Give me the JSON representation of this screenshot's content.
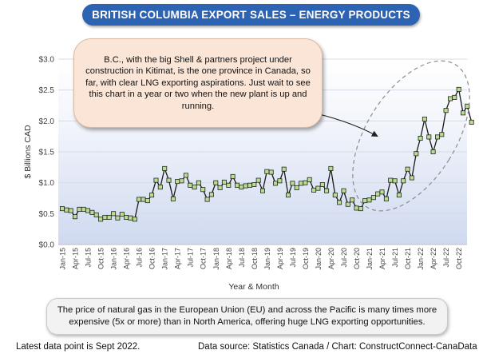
{
  "title": "BRITISH COLUMBIA EXPORT SALES – ENERGY PRODUCTS",
  "annotation": "B.C., with the big Shell & partners project under construction in Kitimat, is the one province in Canada, so far, with clear LNG exporting aspirations. Just wait to see this chart in a year or two when the new plant is up and running.",
  "bottom_note": "The price of natural gas in the European Union (EU) and across the Pacific is many times more expensive (5x or more) than in North America, offering huge LNG exporting opportunities.",
  "footer": {
    "latest": "Latest data point is Sept 2022.",
    "source": "Data source: Statistics Canada / Chart: ConstructConnect-CanaData"
  },
  "colors": {
    "title_bg": "#2d63b3",
    "line": "#1a1a1a",
    "marker_fill": "#b9de8f",
    "marker_edge": "#222222"
  },
  "chart_data": {
    "type": "line",
    "xlabel": "Year & Month",
    "ylabel": "$ Billions CAD",
    "ylim": [
      0,
      3.0
    ],
    "yticks": [
      "$0.0",
      "$0.5",
      "$1.0",
      "$1.5",
      "$2.0",
      "$2.5",
      "$3.0"
    ],
    "grid": true,
    "xtick_labels": [
      "Jan-15",
      "Apr-15",
      "Jul-15",
      "Oct-15",
      "Jan-16",
      "Apr-16",
      "Jul-16",
      "Oct-16",
      "Jan-17",
      "Apr-17",
      "Jul-17",
      "Oct-17",
      "Jan-18",
      "Apr-18",
      "Jul-18",
      "Oct-18",
      "Jan-19",
      "Apr-19",
      "Jul-19",
      "Oct-19",
      "Jan-20",
      "Apr-20",
      "Jul-20",
      "Oct-20",
      "Jan-21",
      "Apr-21",
      "Jul-21",
      "Oct-21",
      "Jan-22",
      "Apr-22",
      "Jul-22",
      "Oct-22"
    ],
    "start_month": "Jan-15",
    "series": [
      {
        "values": [
          0.58,
          0.56,
          0.55,
          0.45,
          0.57,
          0.57,
          0.55,
          0.52,
          0.48,
          0.41,
          0.44,
          0.44,
          0.5,
          0.43,
          0.49,
          0.44,
          0.43,
          0.41,
          0.73,
          0.73,
          0.71,
          0.8,
          1.04,
          0.93,
          1.23,
          1.04,
          0.74,
          1.02,
          1.03,
          1.12,
          0.96,
          0.93,
          1.0,
          0.89,
          0.73,
          0.81,
          1.0,
          0.92,
          1.01,
          0.96,
          1.1,
          0.96,
          0.93,
          0.95,
          0.96,
          0.97,
          1.04,
          0.87,
          1.18,
          1.17,
          0.99,
          1.03,
          1.22,
          0.8,
          0.99,
          0.92,
          0.99,
          1.0,
          1.05,
          0.88,
          0.91,
          0.97,
          0.87,
          1.23,
          0.8,
          0.68,
          0.87,
          0.65,
          0.72,
          0.59,
          0.58,
          0.71,
          0.72,
          0.76,
          0.82,
          0.85,
          0.74,
          1.04,
          1.03,
          0.8,
          1.03,
          1.22,
          1.08,
          1.47,
          1.72,
          2.03,
          1.74,
          1.5,
          1.74,
          1.78,
          2.17,
          2.36,
          2.38,
          2.51,
          2.13,
          2.24,
          1.98
        ]
      }
    ]
  }
}
